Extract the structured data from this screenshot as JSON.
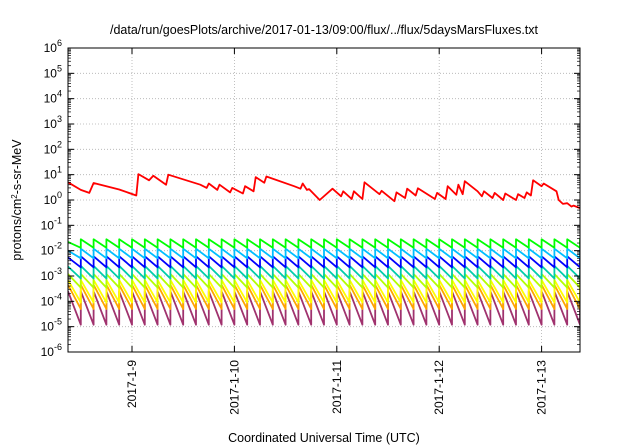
{
  "chart_data": {
    "type": "line",
    "title": "/data/run/goesPlots/archive/2017-01-13/09:00/flux/../flux/5daysMarsFluxes.txt",
    "xlabel": "Coordinated Universal Time (UTC)",
    "ylabel": {
      "base": "protons/cm",
      "sup": "2",
      "rest": "-s-sr-MeV"
    },
    "y_scale": "log",
    "ylim": [
      1e-06,
      1000000.0
    ],
    "y_ticks": [
      {
        "value": 1e-06,
        "base": "10",
        "exp": "-6"
      },
      {
        "value": 1e-05,
        "base": "10",
        "exp": "-5"
      },
      {
        "value": 0.0001,
        "base": "10",
        "exp": "-4"
      },
      {
        "value": 0.001,
        "base": "10",
        "exp": "-3"
      },
      {
        "value": 0.01,
        "base": "10",
        "exp": "-2"
      },
      {
        "value": 0.1,
        "base": "10",
        "exp": "-1"
      },
      {
        "value": 1,
        "base": "10",
        "exp": "0"
      },
      {
        "value": 10,
        "base": "10",
        "exp": "1"
      },
      {
        "value": 100,
        "base": "10",
        "exp": "2"
      },
      {
        "value": 1000,
        "base": "10",
        "exp": "3"
      },
      {
        "value": 10000,
        "base": "10",
        "exp": "4"
      },
      {
        "value": 100000,
        "base": "10",
        "exp": "5"
      },
      {
        "value": 1000000,
        "base": "10",
        "exp": "6"
      }
    ],
    "xlim": [
      "2017-01-08 09:00",
      "2017-01-13 09:00"
    ],
    "x_ticks": [
      "2017-1-9",
      "2017-1-10",
      "2017-1-11",
      "2017-1-12",
      "2017-1-13"
    ],
    "grid": true,
    "legend": "none",
    "series": [
      {
        "color": "#ff0000",
        "points": [
          [
            "2017-01-08 09:00",
            5.0
          ],
          [
            "2017-01-08 12:00",
            2.5
          ],
          [
            "2017-01-08 14:00",
            1.9
          ],
          [
            "2017-01-08 15:00",
            4.7
          ],
          [
            "2017-01-08 21:00",
            2.6
          ],
          [
            "2017-01-09 01:00",
            1.5
          ],
          [
            "2017-01-09 01:30",
            10.5
          ],
          [
            "2017-01-09 04:00",
            6.0
          ],
          [
            "2017-01-09 05:00",
            9.0
          ],
          [
            "2017-01-09 08:00",
            4.0
          ],
          [
            "2017-01-09 08:30",
            10.0
          ],
          [
            "2017-01-09 16:00",
            4.0
          ],
          [
            "2017-01-09 17:30",
            3.0
          ],
          [
            "2017-01-09 18:00",
            4.5
          ],
          [
            "2017-01-09 20:00",
            2.5
          ],
          [
            "2017-01-09 20:30",
            4.0
          ],
          [
            "2017-01-09 23:00",
            2.0
          ],
          [
            "2017-01-09 23:30",
            3.0
          ],
          [
            "2017-01-10 02:00",
            1.8
          ],
          [
            "2017-01-10 02:30",
            3.5
          ],
          [
            "2017-01-10 04:30",
            2.2
          ],
          [
            "2017-01-10 05:00",
            8.0
          ],
          [
            "2017-01-10 07:00",
            4.8
          ],
          [
            "2017-01-10 07:30",
            8.5
          ],
          [
            "2017-01-10 14:00",
            3.5
          ],
          [
            "2017-01-10 15:30",
            2.8
          ],
          [
            "2017-01-10 16:00",
            4.5
          ],
          [
            "2017-01-10 17:00",
            2.5
          ],
          [
            "2017-01-10 17:30",
            2.7
          ],
          [
            "2017-01-10 20:00",
            1.0
          ],
          [
            "2017-01-10 23:00",
            2.8
          ],
          [
            "2017-01-11 01:00",
            1.4
          ],
          [
            "2017-01-11 01:30",
            2.2
          ],
          [
            "2017-01-11 03:30",
            1.1
          ],
          [
            "2017-01-11 04:00",
            2.2
          ],
          [
            "2017-01-11 06:00",
            1.1
          ],
          [
            "2017-01-11 06:30",
            5.0
          ],
          [
            "2017-01-11 10:00",
            1.7
          ],
          [
            "2017-01-11 10:30",
            2.3
          ],
          [
            "2017-01-11 13:30",
            0.9
          ],
          [
            "2017-01-11 14:00",
            2.0
          ],
          [
            "2017-01-11 16:00",
            1.2
          ],
          [
            "2017-01-11 16:30",
            2.8
          ],
          [
            "2017-01-11 18:30",
            1.5
          ],
          [
            "2017-01-11 19:00",
            2.9
          ],
          [
            "2017-01-11 23:00",
            1.1
          ],
          [
            "2017-01-11 23:30",
            1.9
          ],
          [
            "2017-01-12 01:30",
            1.1
          ],
          [
            "2017-01-12 02:00",
            3.5
          ],
          [
            "2017-01-12 04:00",
            1.6
          ],
          [
            "2017-01-12 04:30",
            4.0
          ],
          [
            "2017-01-12 05:30",
            1.7
          ],
          [
            "2017-01-12 06:00",
            5.5
          ],
          [
            "2017-01-12 09:00",
            2.2
          ],
          [
            "2017-01-12 10:00",
            1.4
          ],
          [
            "2017-01-12 10:30",
            2.2
          ],
          [
            "2017-01-12 12:30",
            1.2
          ],
          [
            "2017-01-12 13:00",
            1.9
          ],
          [
            "2017-01-12 15:00",
            1.0
          ],
          [
            "2017-01-12 15:30",
            1.8
          ],
          [
            "2017-01-12 18:00",
            1.0
          ],
          [
            "2017-01-12 18:30",
            1.7
          ],
          [
            "2017-01-12 20:00",
            1.2
          ],
          [
            "2017-01-12 20:30",
            2.0
          ],
          [
            "2017-01-12 21:30",
            1.5
          ],
          [
            "2017-01-12 22:00",
            6.0
          ],
          [
            "2017-01-13 00:00",
            3.5
          ],
          [
            "2017-01-13 00:30",
            4.5
          ],
          [
            "2017-01-13 03:30",
            2.2
          ],
          [
            "2017-01-13 04:00",
            1.0
          ],
          [
            "2017-01-13 05:00",
            0.7
          ],
          [
            "2017-01-13 06:00",
            0.75
          ],
          [
            "2017-01-13 07:00",
            0.55
          ],
          [
            "2017-01-13 07:30",
            0.6
          ],
          [
            "2017-01-13 09:00",
            0.48
          ]
        ]
      },
      {
        "color": "#00ff00",
        "sawtooth": {
          "peak": 0.028,
          "trough": 0.013,
          "period_hours": 3,
          "start_phase": 0.7
        }
      },
      {
        "color": "#00bfff",
        "sawtooth": {
          "peak": 0.012,
          "trough": 0.005,
          "period_hours": 3,
          "start_phase": 0.8
        }
      },
      {
        "color": "#0000ff",
        "sawtooth": {
          "peak": 0.006,
          "trough": 0.0022,
          "period_hours": 3,
          "start_phase": 0.9
        }
      },
      {
        "color": "#00cdaa",
        "sawtooth": {
          "peak": 0.0025,
          "trough": 0.0008,
          "period_hours": 3,
          "start_phase": 0.95
        }
      },
      {
        "color": "#b4ff00",
        "sawtooth": {
          "peak": 0.0012,
          "trough": 0.00035,
          "period_hours": 3,
          "start_phase": 1.0
        }
      },
      {
        "color": "#ffff00",
        "sawtooth": {
          "peak": 0.0007,
          "trough": 9e-05,
          "period_hours": 3,
          "start_phase": 1.0
        }
      },
      {
        "color": "#ffa500",
        "sawtooth": {
          "peak": 0.00045,
          "trough": 5e-05,
          "period_hours": 3,
          "start_phase": 1.0
        }
      },
      {
        "color": "#a0326e",
        "sawtooth": {
          "peak": 0.00025,
          "trough": 1.2e-05,
          "period_hours": 3,
          "start_phase": 1.0
        }
      }
    ]
  }
}
